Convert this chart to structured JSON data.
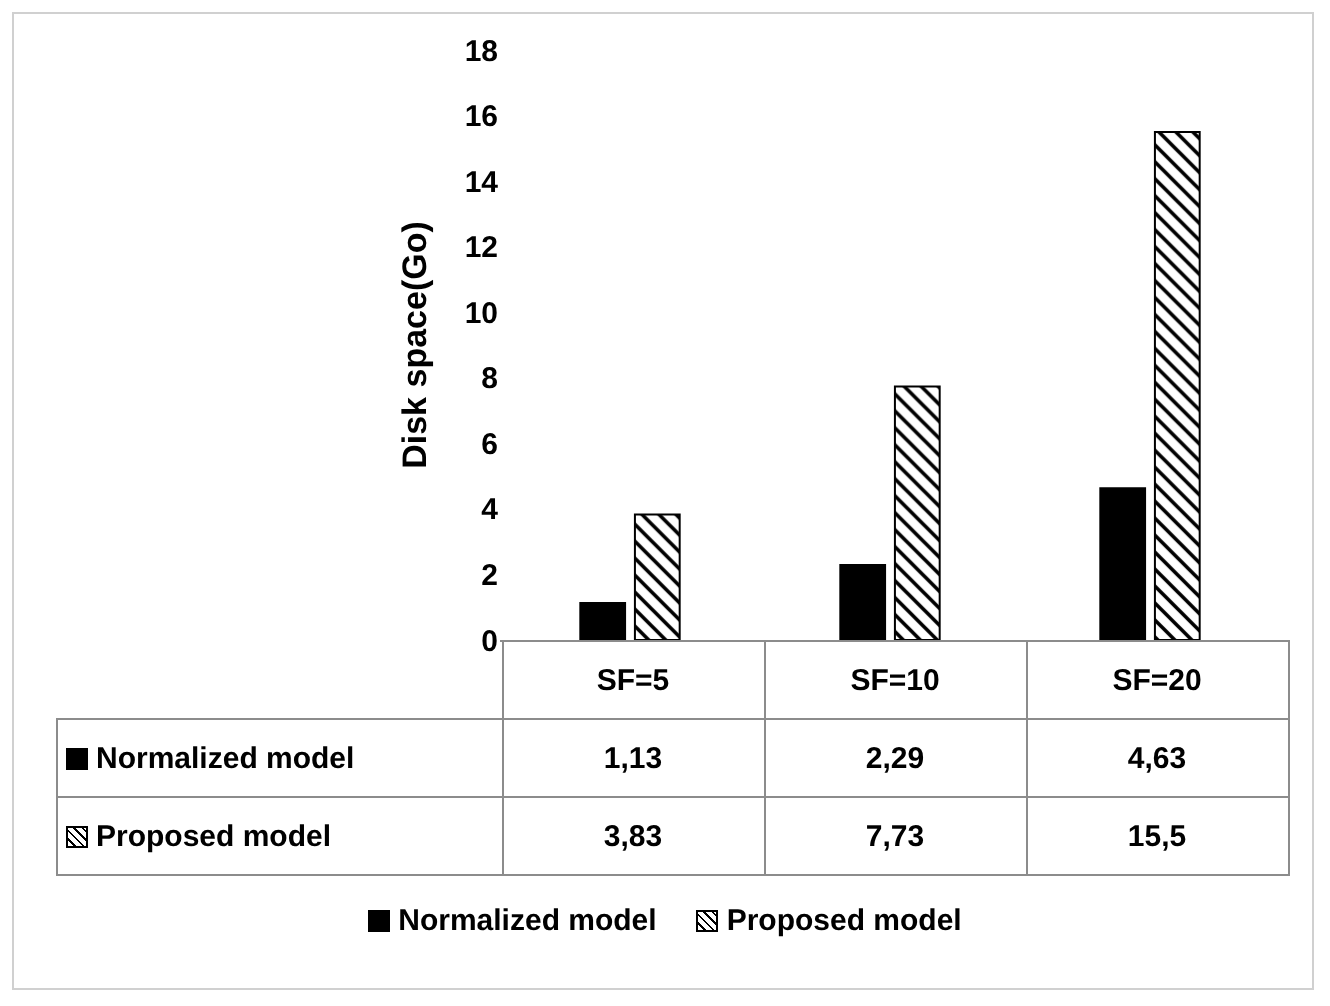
{
  "chart_data": {
    "type": "bar",
    "ylabel": "Disk space(Go)",
    "categories": [
      "SF=5",
      "SF=10",
      "SF=20"
    ],
    "series": [
      {
        "name": "Normalized model",
        "color": "#000000",
        "values": [
          1.13,
          2.29,
          4.63
        ],
        "value_labels": [
          "1,13",
          "2,29",
          "4,63"
        ]
      },
      {
        "name": "Proposed model",
        "color": "#000000",
        "values": [
          3.83,
          7.73,
          15.5
        ],
        "value_labels": [
          "3,83",
          "7,73",
          "15,5"
        ]
      }
    ],
    "ylim": [
      0,
      18
    ],
    "yticks": [
      0,
      2,
      4,
      6,
      8,
      10,
      12,
      14,
      16,
      18
    ],
    "grid": false,
    "legend": "bottom"
  }
}
